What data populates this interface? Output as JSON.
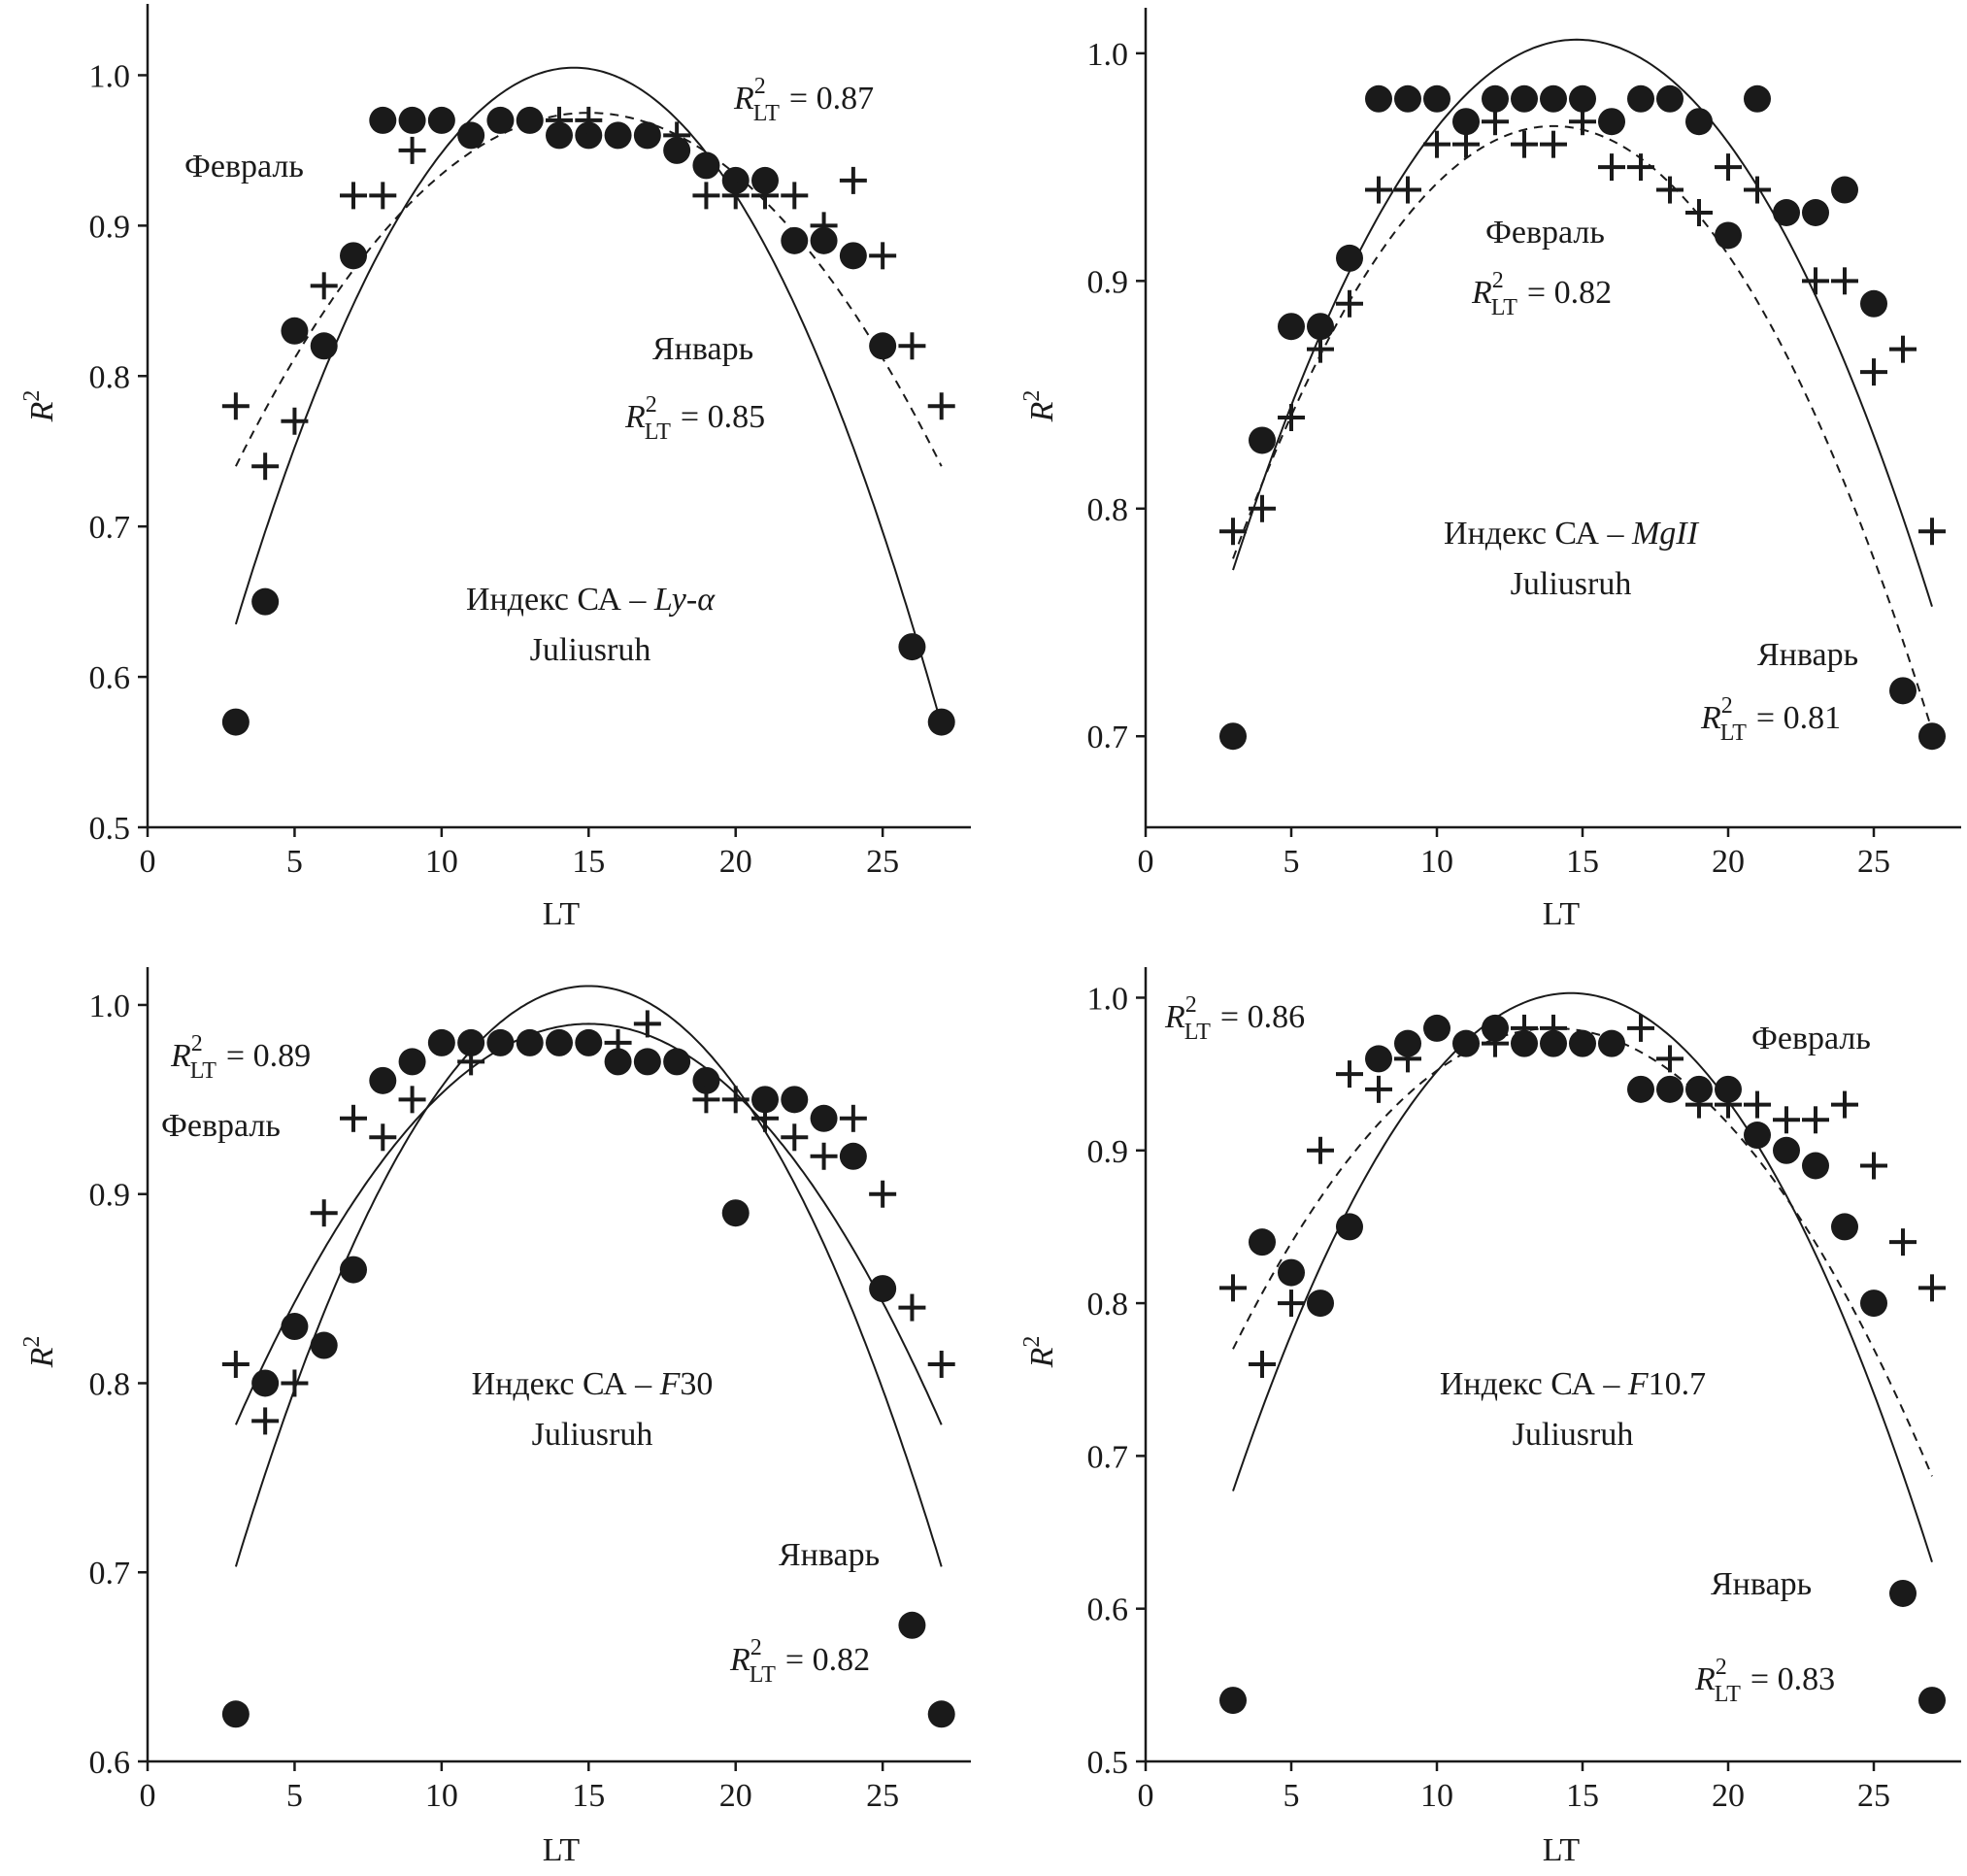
{
  "chart_data": [
    {
      "type": "scatter",
      "index_label": "Индекс СА – ",
      "index_name": "Ly-α",
      "station": "Juliusruh",
      "xlabel": "LT",
      "ylabel": "R",
      "xlim": [
        0,
        28
      ],
      "ylim": [
        0.5,
        1.05
      ],
      "xticks": [
        0,
        5,
        10,
        15,
        20,
        25
      ],
      "yticks": [
        0.5,
        0.6,
        0.7,
        0.8,
        0.9,
        1.0
      ],
      "ytick_decimals": 1,
      "series": [
        {
          "name": "Январь",
          "marker": "circle",
          "x": [
            3,
            4,
            5,
            6,
            7,
            8,
            9,
            10,
            11,
            12,
            13,
            14,
            15,
            16,
            17,
            18,
            19,
            20,
            21,
            22,
            23,
            24,
            25,
            26,
            27
          ],
          "y": [
            0.57,
            0.65,
            0.83,
            0.82,
            0.88,
            0.97,
            0.97,
            0.97,
            0.96,
            0.97,
            0.97,
            0.96,
            0.96,
            0.96,
            0.96,
            0.95,
            0.94,
            0.93,
            0.93,
            0.89,
            0.89,
            0.88,
            0.82,
            0.62,
            0.57
          ],
          "fit": {
            "style": "solid",
            "peak_x": 14.5,
            "peak_y": 1.005,
            "end_x": 3,
            "end_y": 0.635
          }
        },
        {
          "name": "Февраль",
          "marker": "plus",
          "x": [
            3,
            4,
            5,
            6,
            7,
            8,
            9,
            14,
            15,
            18,
            19,
            20,
            21,
            22,
            23,
            24,
            25,
            26,
            27
          ],
          "y": [
            0.78,
            0.74,
            0.77,
            0.86,
            0.92,
            0.92,
            0.95,
            0.97,
            0.97,
            0.96,
            0.92,
            0.92,
            0.92,
            0.92,
            0.9,
            0.93,
            0.88,
            0.82,
            0.78
          ],
          "fit": {
            "style": "dashed",
            "peak_x": 15,
            "peak_y": 0.975,
            "end_x": 3,
            "end_y": 0.74
          }
        }
      ],
      "annotations": [
        {
          "text": "Февраль",
          "anchor": "upper-left"
        },
        {
          "r2_label": "R",
          "sup": "2",
          "sub": "LT",
          "value": "= 0.87",
          "anchor": "top-right"
        },
        {
          "text": "Январь",
          "anchor": "center-right"
        },
        {
          "r2_label": "R",
          "sup": "2",
          "sub": "LT",
          "value": "= 0.85",
          "anchor": "center-right-lower"
        }
      ]
    },
    {
      "type": "scatter",
      "index_label": "Индекс СА – ",
      "index_name": "MgII",
      "station": "Juliusruh",
      "xlabel": "LT",
      "ylabel": "R",
      "xlim": [
        0,
        28
      ],
      "ylim": [
        0.66,
        1.02
      ],
      "xticks": [
        0,
        5,
        10,
        15,
        20,
        25
      ],
      "yticks": [
        0.7,
        0.8,
        0.9,
        1.0
      ],
      "ytick_decimals": 1,
      "series": [
        {
          "name": "Январь",
          "marker": "circle",
          "x": [
            3,
            4,
            5,
            6,
            7,
            8,
            9,
            10,
            11,
            12,
            13,
            14,
            15,
            16,
            17,
            18,
            19,
            20,
            21,
            22,
            23,
            24,
            25,
            26,
            27
          ],
          "y": [
            0.7,
            0.83,
            0.88,
            0.88,
            0.91,
            0.98,
            0.98,
            0.98,
            0.97,
            0.98,
            0.98,
            0.98,
            0.98,
            0.97,
            0.98,
            0.98,
            0.97,
            0.92,
            0.98,
            0.93,
            0.93,
            0.94,
            0.89,
            0.72,
            0.7
          ],
          "fit": {
            "style": "solid",
            "peak_x": 14.8,
            "peak_y": 1.006,
            "end_x": 3,
            "end_y": 0.773
          }
        },
        {
          "name": "Февраль",
          "marker": "plus",
          "x": [
            3,
            4,
            5,
            6,
            7,
            8,
            9,
            10,
            11,
            12,
            13,
            14,
            15,
            16,
            17,
            18,
            19,
            20,
            21,
            23,
            24,
            25,
            26,
            27
          ],
          "y": [
            0.79,
            0.8,
            0.84,
            0.87,
            0.89,
            0.94,
            0.94,
            0.96,
            0.96,
            0.97,
            0.96,
            0.96,
            0.97,
            0.95,
            0.95,
            0.94,
            0.93,
            0.95,
            0.94,
            0.9,
            0.9,
            0.86,
            0.87,
            0.79
          ],
          "fit": {
            "style": "dashed",
            "peak_x": 14,
            "peak_y": 0.968,
            "end_x": 3,
            "end_y": 0.778
          }
        }
      ],
      "annotations": [
        {
          "text": "Февраль",
          "anchor": "upper-center"
        },
        {
          "r2_label": "R",
          "sup": "2",
          "sub": "LT",
          "value": "= 0.82",
          "anchor": "upper-center"
        },
        {
          "text": "Январь",
          "anchor": "lower-right"
        },
        {
          "r2_label": "R",
          "sup": "2",
          "sub": "LT",
          "value": "= 0.81",
          "anchor": "lower-right"
        }
      ]
    },
    {
      "type": "scatter",
      "index_label": "Индекс СА – ",
      "index_name": "F",
      "index_suffix": "30",
      "station": "Juliusruh",
      "xlabel": "LT",
      "ylabel": "R",
      "xlim": [
        0,
        28
      ],
      "ylim": [
        0.6,
        1.02
      ],
      "xticks": [
        0,
        5,
        10,
        15,
        20,
        25
      ],
      "yticks": [
        0.6,
        0.7,
        0.8,
        0.9,
        1.0
      ],
      "ytick_decimals": 1,
      "series": [
        {
          "name": "Январь",
          "marker": "circle",
          "x": [
            3,
            4,
            5,
            6,
            7,
            8,
            9,
            10,
            11,
            12,
            13,
            14,
            15,
            16,
            17,
            18,
            19,
            20,
            21,
            22,
            23,
            24,
            25,
            26,
            27
          ],
          "y": [
            0.625,
            0.8,
            0.83,
            0.82,
            0.86,
            0.96,
            0.97,
            0.98,
            0.98,
            0.98,
            0.98,
            0.98,
            0.98,
            0.97,
            0.97,
            0.97,
            0.96,
            0.89,
            0.95,
            0.95,
            0.94,
            0.92,
            0.85,
            0.672,
            0.625
          ],
          "fit": {
            "style": "solid",
            "peak_x": 15,
            "peak_y": 1.01,
            "end_x": 3,
            "end_y": 0.703
          }
        },
        {
          "name": "Февраль",
          "marker": "plus",
          "x": [
            3,
            4,
            5,
            6,
            7,
            8,
            9,
            11,
            16,
            17,
            19,
            20,
            21,
            22,
            23,
            24,
            25,
            26,
            27
          ],
          "y": [
            0.81,
            0.78,
            0.8,
            0.89,
            0.94,
            0.93,
            0.95,
            0.97,
            0.98,
            0.99,
            0.95,
            0.95,
            0.94,
            0.93,
            0.92,
            0.94,
            0.9,
            0.84,
            0.81
          ],
          "fit": {
            "style": "solid",
            "peak_x": 15,
            "peak_y": 0.99,
            "end_x": 3,
            "end_y": 0.778
          }
        }
      ],
      "annotations": [
        {
          "r2_label": "R",
          "sup": "2",
          "sub": "LT",
          "value": "= 0.89",
          "anchor": "upper-left"
        },
        {
          "text": "Февраль",
          "anchor": "upper-left"
        },
        {
          "text": "Январь",
          "anchor": "lower-right"
        },
        {
          "r2_label": "R",
          "sup": "2",
          "sub": "LT",
          "value": "= 0.82",
          "anchor": "lower-right"
        }
      ]
    },
    {
      "type": "scatter",
      "index_label": "Индекс СА – ",
      "index_name": "F",
      "index_suffix": "10.7",
      "station": "Juliusruh",
      "xlabel": "LT",
      "ylabel": "R",
      "xlim": [
        0,
        28
      ],
      "ylim": [
        0.5,
        1.02
      ],
      "xticks": [
        0,
        5,
        10,
        15,
        20,
        25
      ],
      "yticks": [
        0.5,
        0.6,
        0.7,
        0.8,
        0.9,
        1.0
      ],
      "ytick_decimals": 1,
      "series": [
        {
          "name": "Январь",
          "marker": "circle",
          "x": [
            3,
            4,
            5,
            6,
            7,
            8,
            9,
            10,
            11,
            12,
            13,
            14,
            15,
            16,
            17,
            18,
            19,
            20,
            21,
            22,
            23,
            24,
            25,
            26,
            27
          ],
          "y": [
            0.54,
            0.84,
            0.82,
            0.8,
            0.85,
            0.96,
            0.97,
            0.98,
            0.97,
            0.98,
            0.97,
            0.97,
            0.97,
            0.97,
            0.94,
            0.94,
            0.94,
            0.94,
            0.91,
            0.9,
            0.89,
            0.85,
            0.8,
            0.61,
            0.54
          ],
          "fit": {
            "style": "solid",
            "peak_x": 14.6,
            "peak_y": 1.003,
            "end_x": 3,
            "end_y": 0.677
          }
        },
        {
          "name": "Февраль",
          "marker": "plus",
          "x": [
            3,
            4,
            5,
            6,
            7,
            8,
            9,
            12,
            13,
            14,
            17,
            18,
            19,
            20,
            21,
            22,
            23,
            24,
            25,
            26,
            27
          ],
          "y": [
            0.81,
            0.76,
            0.8,
            0.9,
            0.95,
            0.94,
            0.96,
            0.97,
            0.98,
            0.98,
            0.98,
            0.96,
            0.93,
            0.93,
            0.93,
            0.92,
            0.92,
            0.93,
            0.89,
            0.84,
            0.81
          ],
          "fit": {
            "style": "dashed",
            "peak_x": 14,
            "peak_y": 0.98,
            "end_x": 3,
            "end_y": 0.77
          }
        }
      ],
      "annotations": [
        {
          "r2_label": "R",
          "sup": "2",
          "sub": "LT",
          "value": "= 0.86",
          "anchor": "upper-left"
        },
        {
          "text": "Февраль",
          "anchor": "upper-right"
        },
        {
          "text": "Январь",
          "anchor": "lower-right"
        },
        {
          "r2_label": "R",
          "sup": "2",
          "sub": "LT",
          "value": "= 0.83",
          "anchor": "lower-right"
        }
      ]
    }
  ]
}
